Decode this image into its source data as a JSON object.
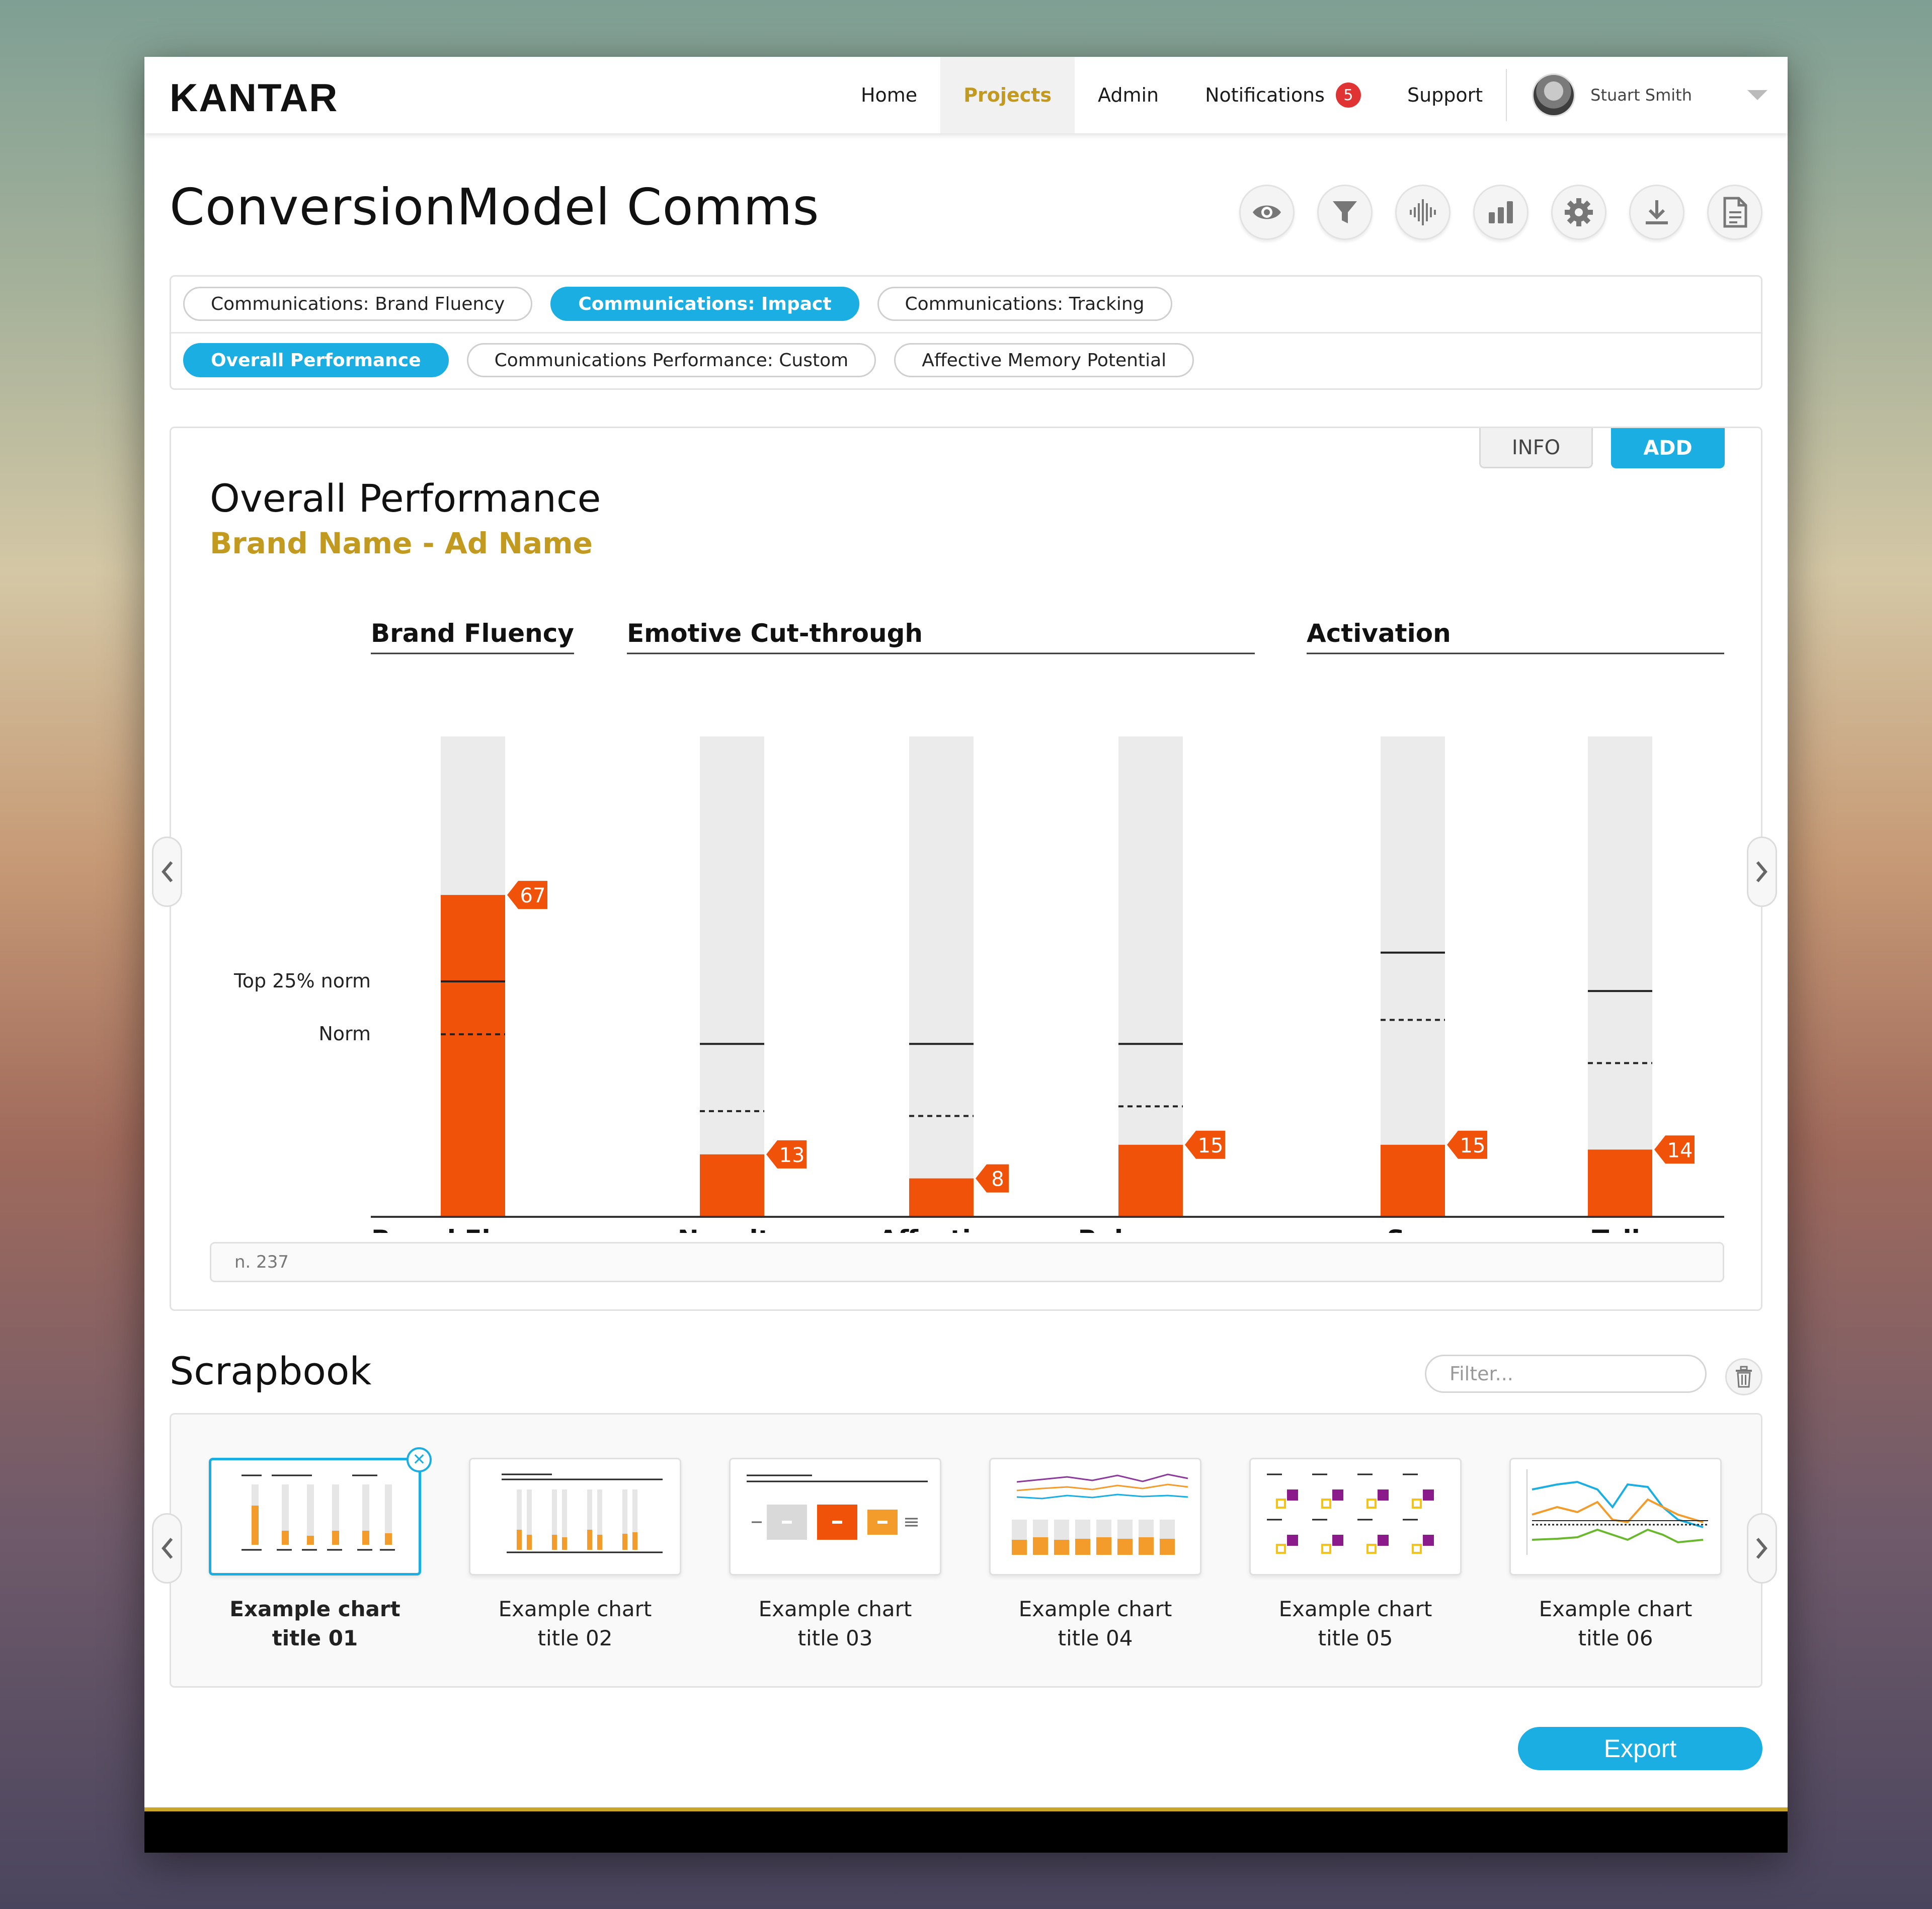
{
  "brand": "KANTAR",
  "nav": {
    "items": [
      "Home",
      "Projects",
      "Admin",
      "Notifications",
      "Support"
    ],
    "notifications_count": "5",
    "user_name": "Stuart Smith",
    "accent": "#c19a1f"
  },
  "page_title": "ConversionModel Comms",
  "toolbar_icons": [
    "eye-icon",
    "filter-icon",
    "audio-wave-icon",
    "bar-chart-icon",
    "gear-icon",
    "download-icon",
    "document-icon"
  ],
  "tabs": {
    "row1": [
      "Communications: Brand Fluency",
      "Communications: Impact",
      "Communications: Tracking"
    ],
    "row2": [
      "Overall Performance",
      "Communications Performance: Custom",
      "Affective Memory Potential"
    ],
    "selected_color": "#1aaee3"
  },
  "panel_buttons": {
    "info": "INFO",
    "add": "ADD"
  },
  "chart_data": {
    "type": "bar",
    "title": "Overall Performance",
    "subtitle": "Brand Name - Ad Name",
    "groups": [
      {
        "label": "Brand Fluency",
        "categories": [
          "Brand Fluency"
        ]
      },
      {
        "label": "Emotive Cut-through",
        "categories": [
          "Novelty",
          "Affective",
          "Relevance"
        ]
      },
      {
        "label": "Activation",
        "categories": [
          "See",
          "Talk"
        ]
      }
    ],
    "categories": [
      "Brand Fluency",
      "Novelty",
      "Affective",
      "Relevance",
      "See",
      "Talk"
    ],
    "values": [
      67,
      13,
      8,
      15,
      15,
      14
    ],
    "top25_norm": [
      49,
      36,
      36,
      36,
      55,
      47
    ],
    "norm": [
      38,
      22,
      21,
      23,
      41,
      32
    ],
    "ylim": [
      0,
      100
    ],
    "legend": {
      "top25": "Top 25% norm",
      "norm": "Norm"
    },
    "bar_color": "#f05209",
    "track_color": "#ebebeb"
  },
  "base_text": "n. 237",
  "scrapbook": {
    "title": "Scrapbook",
    "filter_placeholder": "Filter...",
    "items": [
      "Example chart\ntitle 01",
      "Example chart\ntitle 02",
      "Example chart\ntitle 03",
      "Example chart\ntitle 04",
      "Example chart\ntitle 05",
      "Example chart\ntitle 06"
    ]
  },
  "export_label": "Export"
}
